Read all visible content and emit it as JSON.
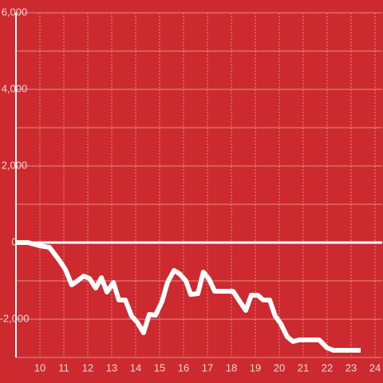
{
  "chart_data": {
    "type": "line",
    "x": [
      9,
      9.5,
      10,
      10.4,
      10.83,
      11.07,
      11.33,
      11.57,
      11.83,
      12.07,
      12.33,
      12.57,
      12.8,
      13.07,
      13.3,
      13.57,
      13.83,
      14.07,
      14.33,
      14.57,
      14.83,
      15.1,
      15.33,
      15.6,
      15.83,
      16.1,
      16.3,
      16.6,
      16.83,
      17.07,
      17.3,
      17.57,
      18.07,
      18.33,
      18.6,
      18.83,
      19.1,
      19.33,
      19.6,
      19.83,
      20.07,
      20.33,
      20.57,
      20.83,
      21.67,
      22,
      22.27,
      23.4
    ],
    "series": [
      {
        "color": "#ffffff",
        "values": [
          0,
          0,
          -83,
          -125,
          -479,
          -708,
          -1104,
          -1000,
          -875,
          -938,
          -1188,
          -917,
          -1292,
          -1042,
          -1500,
          -1500,
          -1917,
          -2083,
          -2354,
          -1875,
          -1896,
          -1542,
          -1042,
          -729,
          -813,
          -1000,
          -1354,
          -1333,
          -771,
          -958,
          -1271,
          -1271,
          -1271,
          -1521,
          -1771,
          -1375,
          -1375,
          -1500,
          -1500,
          -1917,
          -2125,
          -2458,
          -2583,
          -2542,
          -2542,
          -2750,
          -2813,
          -2813
        ]
      }
    ],
    "xlim": [
      9,
      24.3
    ],
    "xticks": [
      10,
      11,
      12,
      13,
      14,
      15,
      16,
      17,
      18,
      19,
      20,
      21,
      22,
      23,
      24
    ],
    "ylim": [
      -3000,
      6000
    ],
    "yticks": [
      {
        "value": 6000,
        "label": "6,000"
      },
      {
        "value": 4000,
        "label": "4,000"
      },
      {
        "value": 2000,
        "label": "2,000"
      },
      0,
      {
        "value": -2000,
        "label": "-2,000"
      }
    ],
    "minor_yticks": [
      5000,
      3000,
      1000,
      -1000,
      -3000
    ],
    "grid": true
  }
}
